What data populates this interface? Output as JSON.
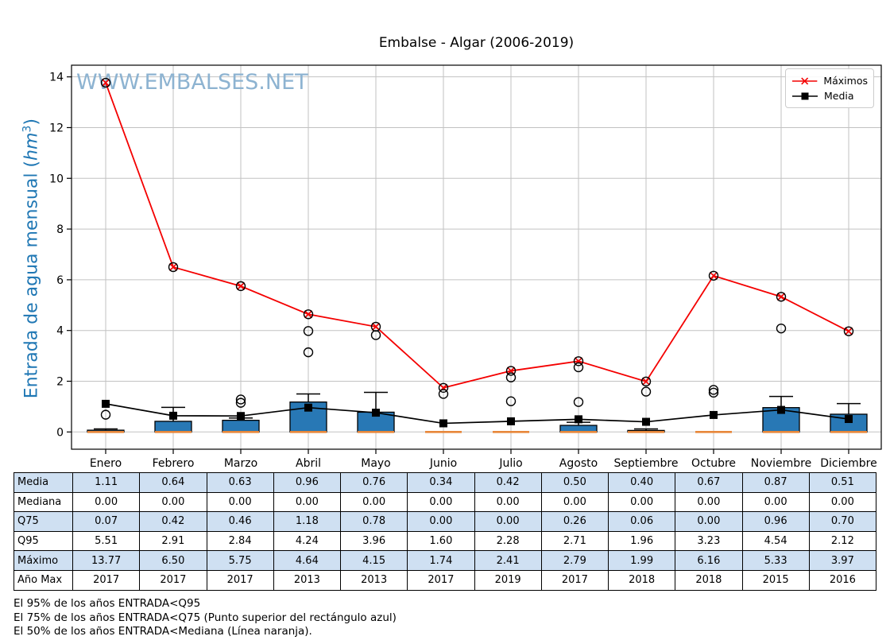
{
  "chart_data": {
    "type": "boxplot",
    "title": "Embalse - Algar (2006-2019)",
    "watermark": "WWW.EMBALSES.NET",
    "ylabel": "Entrada de agua mensual (hm³)",
    "ylabel_parts": {
      "prefix": "Entrada de agua mensual (",
      "unit": "hm",
      "sup": "3",
      "suffix": ")"
    },
    "categories": [
      "Enero",
      "Febrero",
      "Marzo",
      "Abril",
      "Mayo",
      "Junio",
      "Julio",
      "Agosto",
      "Septiembre",
      "Octubre",
      "Noviembre",
      "Diciembre"
    ],
    "yticks": [
      0,
      2,
      4,
      6,
      8,
      10,
      12,
      14
    ],
    "ylim": [
      -0.68,
      14.46
    ],
    "grid": true,
    "legend": {
      "position": "top-right",
      "items": [
        {
          "label": "Máximos",
          "series": "maximos"
        },
        {
          "label": "Media",
          "series": "media"
        }
      ]
    },
    "series": {
      "maximos": [
        13.77,
        6.5,
        5.75,
        4.64,
        4.15,
        1.74,
        2.41,
        2.79,
        1.99,
        6.16,
        5.33,
        3.97
      ],
      "media": [
        1.11,
        0.64,
        0.63,
        0.96,
        0.76,
        0.34,
        0.42,
        0.5,
        0.4,
        0.67,
        0.87,
        0.51
      ],
      "mediana": [
        0.0,
        0.0,
        0.0,
        0.0,
        0.0,
        0.0,
        0.0,
        0.0,
        0.0,
        0.0,
        0.0,
        0.0
      ],
      "q75": [
        0.07,
        0.42,
        0.46,
        1.18,
        0.78,
        0.0,
        0.0,
        0.26,
        0.06,
        0.0,
        0.96,
        0.7
      ],
      "whisker_high": [
        0.12,
        0.97,
        0.55,
        1.5,
        1.56,
        0.0,
        0.0,
        0.38,
        0.12,
        0.0,
        1.4,
        1.12
      ],
      "outliers": [
        [
          0.68,
          13.77
        ],
        [
          6.5
        ],
        [
          1.15,
          1.28,
          5.75
        ],
        [
          3.14,
          3.98,
          4.64
        ],
        [
          3.82,
          4.15
        ],
        [
          1.5,
          1.74
        ],
        [
          1.21,
          2.15,
          2.41
        ],
        [
          1.18,
          2.55,
          2.79
        ],
        [
          1.59,
          1.99
        ],
        [
          1.55,
          1.66,
          6.16
        ],
        [
          4.08,
          5.33
        ],
        [
          3.97
        ]
      ]
    },
    "colors": {
      "box_fill": "#2878b5",
      "box_edge": "#000000",
      "median": "#e8873a",
      "maximos": "#f40000",
      "media": "#000000",
      "grid": "#c2c2c2",
      "spine": "#000000",
      "watermark": "#8db3d1",
      "ylabel": "#1f77b4",
      "table_alt_row": "#cfe0f2"
    }
  },
  "table": {
    "rows": [
      {
        "label": "Media",
        "values": [
          "1.11",
          "0.64",
          "0.63",
          "0.96",
          "0.76",
          "0.34",
          "0.42",
          "0.50",
          "0.40",
          "0.67",
          "0.87",
          "0.51"
        ]
      },
      {
        "label": "Mediana",
        "values": [
          "0.00",
          "0.00",
          "0.00",
          "0.00",
          "0.00",
          "0.00",
          "0.00",
          "0.00",
          "0.00",
          "0.00",
          "0.00",
          "0.00"
        ]
      },
      {
        "label": "Q75",
        "values": [
          "0.07",
          "0.42",
          "0.46",
          "1.18",
          "0.78",
          "0.00",
          "0.00",
          "0.26",
          "0.06",
          "0.00",
          "0.96",
          "0.70"
        ]
      },
      {
        "label": "Q95",
        "values": [
          "5.51",
          "2.91",
          "2.84",
          "4.24",
          "3.96",
          "1.60",
          "2.28",
          "2.71",
          "1.96",
          "3.23",
          "4.54",
          "2.12"
        ]
      },
      {
        "label": "Máximo",
        "values": [
          "13.77",
          "6.50",
          "5.75",
          "4.64",
          "4.15",
          "1.74",
          "2.41",
          "2.79",
          "1.99",
          "6.16",
          "5.33",
          "3.97"
        ]
      },
      {
        "label": "Año Max",
        "values": [
          "2017",
          "2017",
          "2017",
          "2013",
          "2013",
          "2017",
          "2019",
          "2017",
          "2018",
          "2018",
          "2015",
          "2016"
        ]
      }
    ]
  },
  "footnotes": [
    "El 95% de los años ENTRADA<Q95",
    "El 75% de los años ENTRADA<Q75 (Punto superior del rectángulo azul)",
    "El 50% de los años ENTRADA<Mediana (Línea naranja)."
  ]
}
